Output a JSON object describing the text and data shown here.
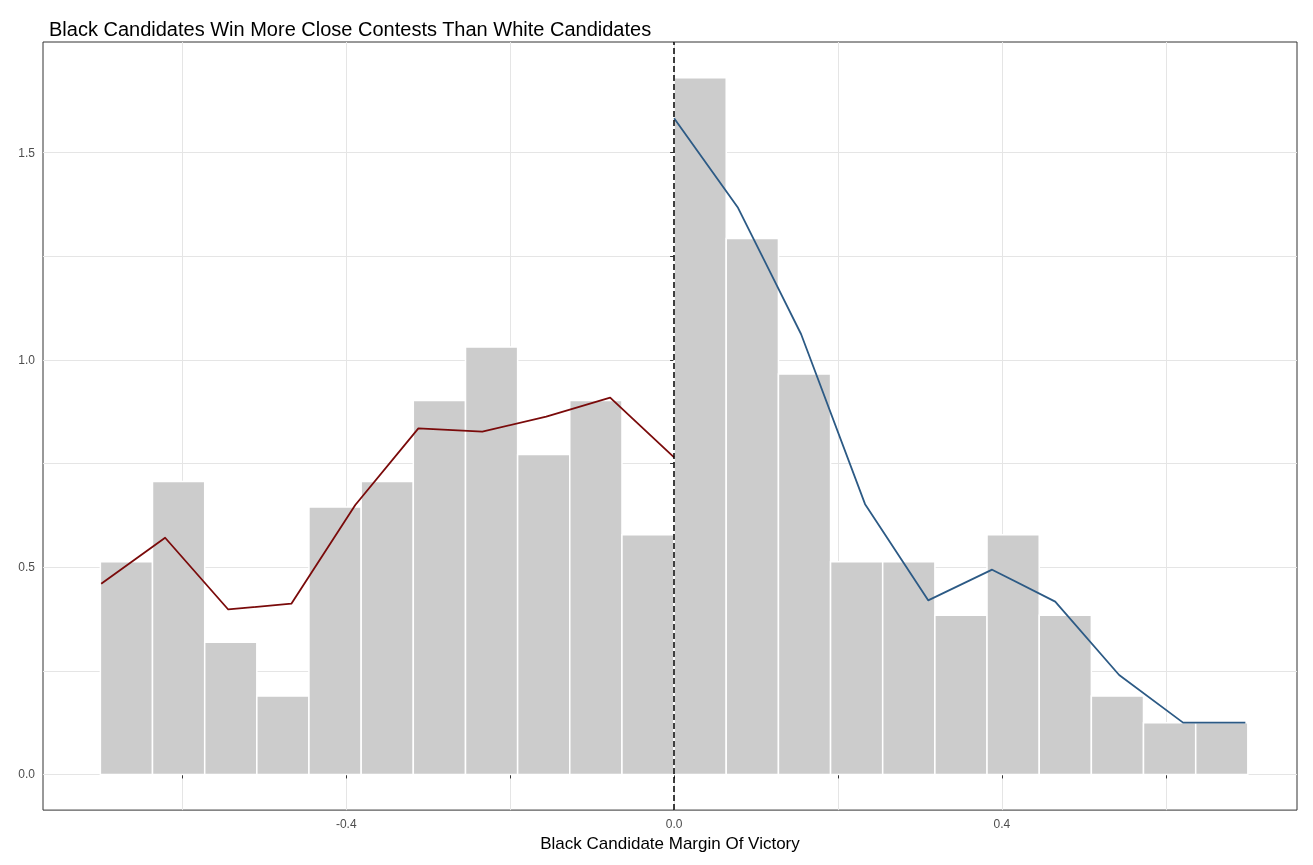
{
  "chart_data": {
    "type": "histogram",
    "title": "Black Candidates Win More Close Contests Than White Candidates",
    "xlabel": "Black Candidate Margin Of Victory",
    "bins": [
      -0.7,
      -0.6364,
      -0.5727,
      -0.5091,
      -0.4455,
      -0.3818,
      -0.3182,
      -0.2545,
      -0.1909,
      -0.1273,
      -0.0636,
      0,
      0.0636,
      0.1273,
      0.1909,
      0.2545,
      0.3182,
      0.3818,
      0.4455,
      0.5091,
      0.5727,
      0.6364,
      0.7
    ],
    "values": [
      0.513,
      0.707,
      0.319,
      0.189,
      0.645,
      0.707,
      0.902,
      1.031,
      0.772,
      0.902,
      0.578,
      1.681,
      1.293,
      0.966,
      0.513,
      0.513,
      0.384,
      0.578,
      0.384,
      0.189,
      0.125,
      0.125
    ],
    "color": "#cccccc",
    "series": [
      {
        "type": "line",
        "color": "#7a0a0a",
        "x": [
          -0.699,
          -0.621,
          -0.544,
          -0.467,
          -0.389,
          -0.312,
          -0.234,
          -0.156,
          -0.078,
          0
        ],
        "values": [
          0.46,
          0.571,
          0.398,
          0.412,
          0.65,
          0.835,
          0.827,
          0.863,
          0.909,
          0.765
        ]
      },
      {
        "type": "line",
        "color": "#2c5a85",
        "x": [
          0,
          0.078,
          0.155,
          0.233,
          0.31,
          0.388,
          0.465,
          0.543,
          0.621,
          0.697
        ],
        "values": [
          1.583,
          1.367,
          1.062,
          0.652,
          0.42,
          0.494,
          0.417,
          0.24,
          0.125,
          0.125
        ]
      }
    ],
    "ref_lines": [
      {
        "axis": "x",
        "value": 0,
        "color": "#000000",
        "line_style": "dashed"
      }
    ],
    "xlim": [
      -0.77,
      0.76
    ],
    "ylim": [
      -0.086,
      1.767
    ],
    "xticks": [
      {
        "value": -0.6,
        "label": null
      },
      -0.4,
      {
        "value": -0.2,
        "label": null
      },
      {
        "value": 0,
        "label": "0.0"
      },
      {
        "value": 0.2,
        "label": null
      },
      0.4,
      {
        "value": 0.6,
        "label": null
      }
    ],
    "yticks": [
      {
        "value": 0,
        "label": "0.0"
      },
      {
        "value": 0.25,
        "label": null
      },
      0.5,
      {
        "value": 0.75,
        "label": null
      },
      {
        "value": 1,
        "label": "1.0"
      },
      {
        "value": 1.25,
        "label": null
      },
      1.5
    ],
    "grid": true,
    "marker": "none",
    "line_style": "solid"
  }
}
